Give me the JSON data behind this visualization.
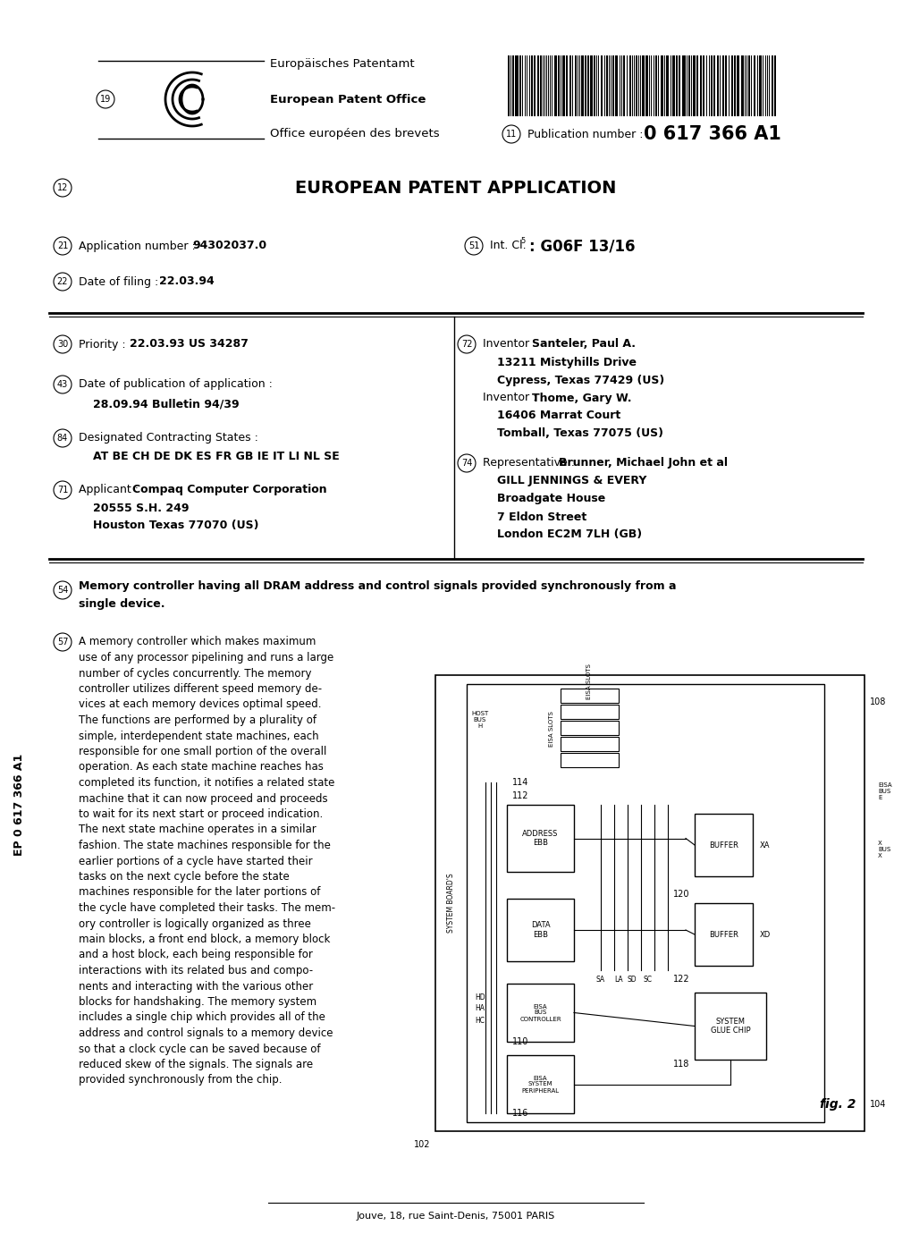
{
  "bg_color": "#ffffff",
  "title": "EUROPEAN PATENT APPLICATION",
  "pub_number": "0 617 366 A1",
  "header_line1": "Europäisches Patentamt",
  "header_line2": "European Patent Office",
  "header_line3": "Office européen des brevets",
  "pub_label": "Publication number :",
  "app_number_label": "Application number :",
  "app_number": "94302037.0",
  "intcl_label": "Int. Cl.",
  "intcl_super": "5",
  "intcl_val": "G06F 13/16",
  "filing_label": "Date of filing :",
  "filing_date": "22.03.94",
  "priority_label": "Priority :",
  "priority_val": "22.03.93 US 34287",
  "pubdate_label": "Date of publication of application :",
  "pubdate_val": "28.09.94 Bulletin 94/39",
  "designated_label": "Designated Contracting States :",
  "designated_val": "AT BE CH DE DK ES FR GB IE IT LI NL SE",
  "applicant_label": "Applicant :",
  "applicant_val1": "Compaq Computer Corporation",
  "applicant_val2": "20555 S.H. 249",
  "applicant_val3": "Houston Texas 77070 (US)",
  "inventor_label": "Inventor :",
  "inventor1_name": "Santeler, Paul A.",
  "inventor1_addr1": "13211 Mistyhills Drive",
  "inventor1_addr2": "Cypress, Texas 77429 (US)",
  "inventor2_label": "Inventor :",
  "inventor2_name": "Thome, Gary W.",
  "inventor2_addr1": "16406 Marrat Court",
  "inventor2_addr2": "Tomball, Texas 77075 (US)",
  "rep_label": "Representative :",
  "rep1": "Brunner, Michael John et al",
  "rep2": "GILL JENNINGS & EVERY",
  "rep3": "Broadgate House",
  "rep4": "7 Eldon Street",
  "rep5": "London EC2M 7LH (GB)",
  "abstract_title_line1": "Memory controller having all DRAM address and control signals provided synchronously from a",
  "abstract_title_line2": "single device.",
  "abstract_lines": [
    "A memory controller which makes maximum",
    "use of any processor pipelining and runs a large",
    "number of cycles concurrently. The memory",
    "controller utilizes different speed memory de-",
    "vices at each memory devices optimal speed.",
    "The functions are performed by a plurality of",
    "simple, interdependent state machines, each",
    "responsible for one small portion of the overall",
    "operation. As each state machine reaches has",
    "completed its function, it notifies a related state",
    "machine that it can now proceed and proceeds",
    "to wait for its next start or proceed indication.",
    "The next state machine operates in a similar",
    "fashion. The state machines responsible for the",
    "earlier portions of a cycle have started their",
    "tasks on the next cycle before the state",
    "machines responsible for the later portions of",
    "the cycle have completed their tasks. The mem-",
    "ory controller is logically organized as three",
    "main blocks, a front end block, a memory block",
    "and a host block, each being responsible for",
    "interactions with its related bus and compo-",
    "nents and interacting with the various other",
    "blocks for handshaking. The memory system",
    "includes a single chip which provides all of the",
    "address and control signals to a memory device",
    "so that a clock cycle can be saved because of",
    "reduced skew of the signals. The signals are",
    "provided synchronously from the chip."
  ],
  "footer_center": "Jouve, 18, rue Saint-Denis, 75001 PARIS",
  "footer_left_vertical": "EP 0 617 366 A1"
}
